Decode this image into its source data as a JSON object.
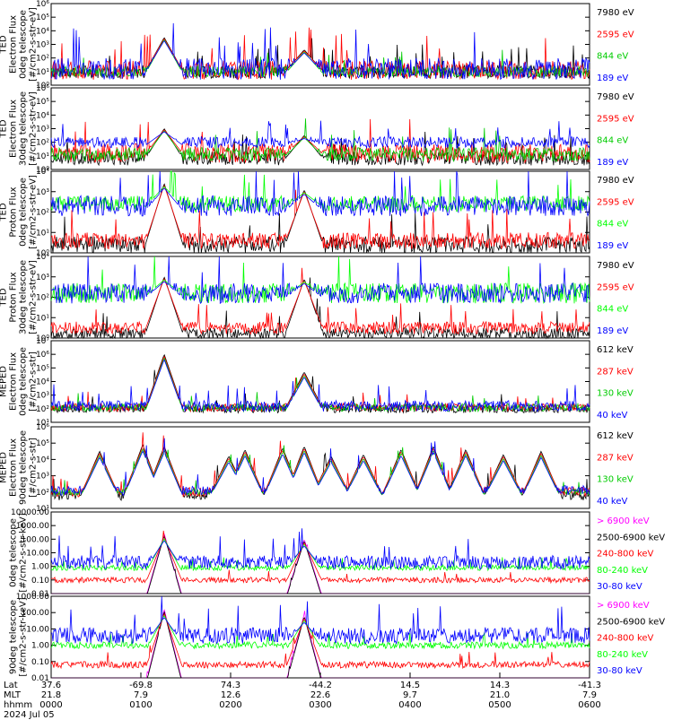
{
  "chart_data": [
    {
      "type": "line",
      "ylabel": [
        "TED",
        "Electron Flux",
        "0deg telescope",
        "[#/cm2-s-str-eV]"
      ],
      "yscale": "log",
      "ylim_exp": [
        0,
        6
      ],
      "y_ticks": [
        "10⁰",
        "10¹",
        "10²",
        "10³",
        "10⁴",
        "10⁵",
        "10⁶"
      ],
      "series": [
        {
          "name": "7980 eV",
          "color": "#000000",
          "base": 1.0,
          "spread": 0.5
        },
        {
          "name": "2595 eV",
          "color": "#ff0000",
          "base": 1.1,
          "spread": 0.7
        },
        {
          "name": "844 eV",
          "color": "#00cc00",
          "base": 1.0,
          "spread": 0.4
        },
        {
          "name": "189 eV",
          "color": "#0000ff",
          "base": 1.2,
          "spread": 0.8
        }
      ],
      "peaks": [
        [
          0.21,
          3.5
        ],
        [
          0.47,
          2.6
        ]
      ]
    },
    {
      "type": "line",
      "ylabel": [
        "TED",
        "Electron Flux",
        "30deg telescope",
        "[#/cm2-s-str-eV]"
      ],
      "yscale": "log",
      "ylim_exp": [
        0,
        6
      ],
      "y_ticks": [
        "10⁰",
        "10¹",
        "10²",
        "10³",
        "10⁴",
        "10⁵",
        "10⁶"
      ],
      "series": [
        {
          "name": "7980 eV",
          "color": "#000000",
          "base": 0.8,
          "spread": 0.5
        },
        {
          "name": "2595 eV",
          "color": "#ff0000",
          "base": 1.2,
          "spread": 0.7
        },
        {
          "name": "844 eV",
          "color": "#00cc00",
          "base": 1.1,
          "spread": 0.5
        },
        {
          "name": "189 eV",
          "color": "#0000ff",
          "base": 2.0,
          "spread": 0.4
        }
      ],
      "peaks": [
        [
          0.21,
          3.0
        ],
        [
          0.47,
          2.5
        ]
      ]
    },
    {
      "type": "line",
      "ylabel": [
        "TED",
        "Proton Flux",
        "0deg telescope",
        "[#/cm2-s-str-eV]"
      ],
      "yscale": "log",
      "ylim_exp": [
        0,
        4
      ],
      "y_ticks": [
        "10⁰",
        "10¹",
        "10²",
        "10³",
        "10⁴"
      ],
      "series": [
        {
          "name": "7980 eV",
          "color": "#000000",
          "base": 0.4,
          "spread": 0.4
        },
        {
          "name": "2595 eV",
          "color": "#ff0000",
          "base": 0.6,
          "spread": 0.4
        },
        {
          "name": "844 eV",
          "color": "#00ff00",
          "base": 2.4,
          "spread": 0.4
        },
        {
          "name": "189 eV",
          "color": "#0000ff",
          "base": 2.3,
          "spread": 0.5
        }
      ],
      "peaks": [
        [
          0.21,
          3.4
        ],
        [
          0.47,
          3.1
        ]
      ]
    },
    {
      "type": "line",
      "ylabel": [
        "TED",
        "Proton Flux",
        "30deg telescope",
        "[#/cm2-s-str-eV]"
      ],
      "yscale": "log",
      "ylim_exp": [
        0,
        4
      ],
      "y_ticks": [
        "10⁰",
        "10¹",
        "10²",
        "10³",
        "10⁴"
      ],
      "series": [
        {
          "name": "7980 eV",
          "color": "#000000",
          "base": 0.2,
          "spread": 0.3
        },
        {
          "name": "2595 eV",
          "color": "#ff0000",
          "base": 0.5,
          "spread": 0.3
        },
        {
          "name": "844 eV",
          "color": "#00ff00",
          "base": 2.2,
          "spread": 0.5
        },
        {
          "name": "189 eV",
          "color": "#0000ff",
          "base": 2.2,
          "spread": 0.5
        }
      ],
      "peaks": [
        [
          0.21,
          3.0
        ],
        [
          0.47,
          2.9
        ]
      ]
    },
    {
      "type": "line",
      "ylabel": [
        "MEPED",
        "Electron Flux",
        "0deg telescope",
        "[#/cm2-s-str]"
      ],
      "yscale": "log",
      "ylim_exp": [
        1,
        7
      ],
      "y_ticks": [
        "10¹",
        "10²",
        "10³",
        "10⁴",
        "10⁵",
        "10⁶",
        "10⁷"
      ],
      "series": [
        {
          "name": "612 keV",
          "color": "#000000",
          "base": 2.0,
          "spread": 0.3
        },
        {
          "name": "287 keV",
          "color": "#ff0000",
          "base": 2.1,
          "spread": 0.3
        },
        {
          "name": "130 keV",
          "color": "#00cc00",
          "base": 2.1,
          "spread": 0.3
        },
        {
          "name": "40 keV",
          "color": "#0000ff",
          "base": 2.2,
          "spread": 0.4
        }
      ],
      "peaks": [
        [
          0.21,
          6.0
        ],
        [
          0.47,
          4.7
        ]
      ]
    },
    {
      "type": "line",
      "ylabel": [
        "MEPED",
        "Electron Flux",
        "90deg telescope",
        "[#/cm2-s-str]"
      ],
      "yscale": "log",
      "ylim_exp": [
        1,
        6
      ],
      "y_ticks": [
        "10¹",
        "10²",
        "10³",
        "10⁴",
        "10⁵",
        "10⁶"
      ],
      "series": [
        {
          "name": "612 keV",
          "color": "#000000",
          "base": 1.8,
          "spread": 0.3
        },
        {
          "name": "287 keV",
          "color": "#ff0000",
          "base": 2.0,
          "spread": 0.3
        },
        {
          "name": "130 keV",
          "color": "#00cc00",
          "base": 2.0,
          "spread": 0.2
        },
        {
          "name": "40 keV",
          "color": "#0000ff",
          "base": 2.1,
          "spread": 0.3
        }
      ],
      "peaks": [
        [
          0.09,
          4.5
        ],
        [
          0.17,
          4.9
        ],
        [
          0.21,
          4.8
        ],
        [
          0.33,
          4.2
        ],
        [
          0.36,
          4.6
        ],
        [
          0.43,
          4.7
        ],
        [
          0.47,
          4.8
        ],
        [
          0.52,
          4.2
        ],
        [
          0.58,
          4.3
        ],
        [
          0.65,
          4.6
        ],
        [
          0.71,
          4.8
        ],
        [
          0.77,
          4.6
        ],
        [
          0.84,
          4.3
        ],
        [
          0.91,
          4.5
        ]
      ]
    },
    {
      "type": "line",
      "ylabel": [
        "0deg telescope",
        "[#/cm2-s-str-keV]"
      ],
      "yscale": "log",
      "ylim_exp": [
        -2,
        4
      ],
      "y_ticks": [
        "0.01",
        "0.10",
        "1.00",
        "10.00",
        "100.00",
        "1000.00",
        "10000.00"
      ],
      "series": [
        {
          "name": "> 6900 keV",
          "color": "#ff00ff",
          "base": -2.4,
          "spread": 0.1
        },
        {
          "name": "2500-6900 keV",
          "color": "#000000",
          "base": -2.4,
          "spread": 0.1
        },
        {
          "name": "240-800 keV",
          "color": "#ff0000",
          "base": -1.0,
          "spread": 0.2
        },
        {
          "name": "80-240 keV",
          "color": "#00ff00",
          "base": -0.1,
          "spread": 0.2
        },
        {
          "name": "30-80 keV",
          "color": "#0000ff",
          "base": 0.3,
          "spread": 0.5
        }
      ],
      "peaks": [
        [
          0.21,
          2.4
        ],
        [
          0.47,
          2.0
        ]
      ]
    },
    {
      "type": "line",
      "ylabel": [
        "90deg telescope",
        "[#/cm2-s-str-keV]"
      ],
      "yscale": "log",
      "ylim_exp": [
        -2,
        3
      ],
      "y_ticks": [
        "0.01",
        "0.10",
        "1.00",
        "10.00",
        "100.00",
        "1000.00"
      ],
      "series": [
        {
          "name": "> 6900 keV",
          "color": "#ff00ff",
          "base": -2.4,
          "spread": 0.1
        },
        {
          "name": "2500-6900 keV",
          "color": "#000000",
          "base": -2.4,
          "spread": 0.1
        },
        {
          "name": "240-800 keV",
          "color": "#ff0000",
          "base": -1.2,
          "spread": 0.2
        },
        {
          "name": "80-240 keV",
          "color": "#00ff00",
          "base": 0.0,
          "spread": 0.2
        },
        {
          "name": "30-80 keV",
          "color": "#0000ff",
          "base": 0.6,
          "spread": 0.5
        }
      ],
      "peaks": [
        [
          0.21,
          2.2
        ],
        [
          0.47,
          1.9
        ]
      ]
    }
  ],
  "x_axis": {
    "row_labels": [
      "Lat",
      "MLT",
      "hhmm"
    ],
    "date": "2024 Jul 05",
    "columns": [
      {
        "lat": "37.6",
        "mlt": "21.8",
        "hhmm": "0000"
      },
      {
        "lat": "-69.8",
        "mlt": "7.9",
        "hhmm": "0100"
      },
      {
        "lat": "74.3",
        "mlt": "12.6",
        "hhmm": "0200"
      },
      {
        "lat": "-44.2",
        "mlt": "22.6",
        "hhmm": "0300"
      },
      {
        "lat": "14.5",
        "mlt": "9.7",
        "hhmm": "0400"
      },
      {
        "lat": "14.3",
        "mlt": "21.0",
        "hhmm": "0500"
      },
      {
        "lat": "-41.3",
        "mlt": "7.9",
        "hhmm": "0600"
      }
    ]
  }
}
